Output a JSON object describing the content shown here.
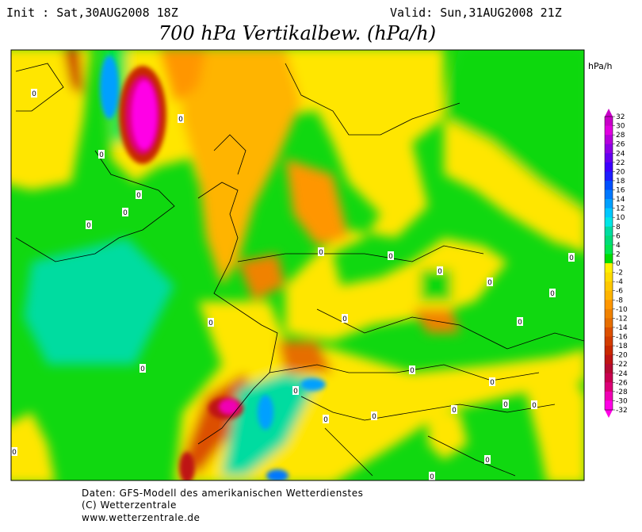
{
  "header": {
    "init": "Init : Sat,30AUG2008 18Z",
    "valid": "Valid: Sun,31AUG2008 21Z",
    "title": "700 hPa Vertikalbew. (hPa/h)"
  },
  "legend": {
    "unit": "hPa/h",
    "labels": [
      32,
      30,
      28,
      26,
      24,
      22,
      20,
      18,
      16,
      14,
      12,
      10,
      8,
      6,
      4,
      2,
      0,
      -2,
      -4,
      -6,
      -8,
      -10,
      -12,
      -14,
      -16,
      -18,
      -20,
      -22,
      -24,
      -26,
      -28,
      -30,
      -32
    ],
    "colors": [
      "#c800c8",
      "#e000e0",
      "#b400dc",
      "#8c00e6",
      "#6400f0",
      "#3c00ff",
      "#1e1eff",
      "#0050ff",
      "#0078ff",
      "#00a0ff",
      "#00c8ff",
      "#00e6e6",
      "#00dca0",
      "#00dc78",
      "#00e650",
      "#00dc00",
      "#fff000",
      "#ffdc00",
      "#ffc800",
      "#ffb400",
      "#ff9600",
      "#f08200",
      "#e66e00",
      "#dc5000",
      "#d23c00",
      "#c82800",
      "#be1414",
      "#b40a32",
      "#c80050",
      "#dc0078",
      "#f000b4",
      "#ff00e6"
    ]
  },
  "map": {
    "contour_labels": [
      "0",
      "0",
      "0",
      "0",
      "0",
      "0",
      "0",
      "0",
      "0",
      "0",
      "0",
      "0",
      "0",
      "0",
      "0",
      "0",
      "0",
      "0",
      "0",
      "0",
      "0",
      "0",
      "0",
      "0",
      "0",
      "0",
      "0"
    ]
  },
  "footer": {
    "lines": [
      "Daten: GFS-Modell des amerikanischen Wetterdienstes",
      "(C) Wetterzentrale",
      "www.wetterzentrale.de"
    ]
  }
}
